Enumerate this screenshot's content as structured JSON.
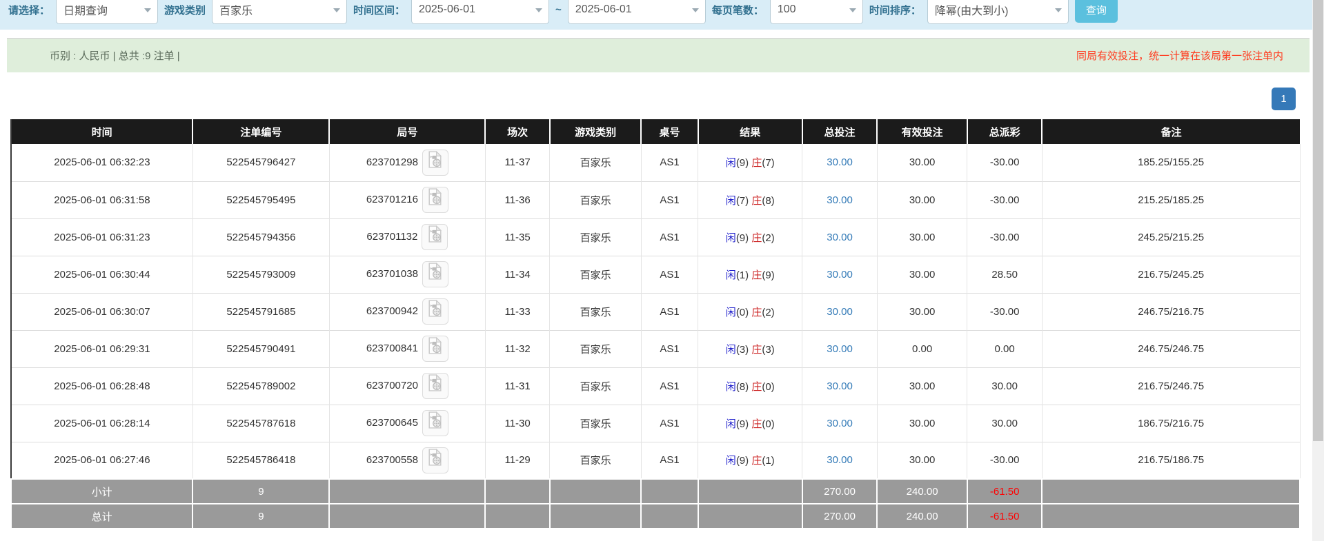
{
  "toolbar": {
    "select_label": "请选择：",
    "select_value": "日期查询",
    "game_label": "游戏类别",
    "game_value": "百家乐",
    "range_label": "时间区间：",
    "range_from": "2025-06-01",
    "range_tilde": "~",
    "range_to": "2025-06-01",
    "pagesize_label": "每页笔数：",
    "pagesize_value": "100",
    "sort_label": "时间排序：",
    "sort_value": "降幂(由大到小)",
    "search_label": "查询"
  },
  "summary_bar": {
    "left_text": "币别 : 人民币 | 总共 :9 注单 |",
    "right_text": "同局有效投注，统一计算在该局第一张注单内"
  },
  "pagination": {
    "page": "1"
  },
  "colors": {
    "accent_blue": "#337ab7",
    "player_blue": "#2222cc",
    "banker_red": "#cc2222",
    "negative_red": "#ff0000",
    "header_bg": "#1b1b1b",
    "footer_bg": "#9a9a9a",
    "toolbar_bg": "#d9edf7",
    "summary_bg": "#dfeedb"
  },
  "icons": {
    "chevron": "chevron-down-icon",
    "video": "video-record-icon"
  },
  "table": {
    "headers": [
      "时间",
      "注单编号",
      "局号",
      "场次",
      "游戏类别",
      "桌号",
      "结果",
      "总投注",
      "有效投注",
      "总派彩",
      "备注"
    ],
    "col_widths_pct": [
      14.1,
      10.6,
      12.1,
      5.0,
      7.1,
      4.4,
      8.1,
      5.8,
      7.0,
      5.8,
      20.0
    ],
    "rows": [
      {
        "time": "2025-06-01 06:32:23",
        "bet_id": "522545796427",
        "round": "623701298",
        "session": "11-37",
        "game": "百家乐",
        "table_no": "AS1",
        "result": {
          "player": "闲",
          "player_score": "(9)",
          "banker": "庄",
          "banker_score": "(7)"
        },
        "total_bet": "30.00",
        "valid_bet": "30.00",
        "payout": "-30.00",
        "remark": "185.25/155.25"
      },
      {
        "time": "2025-06-01 06:31:58",
        "bet_id": "522545795495",
        "round": "623701216",
        "session": "11-36",
        "game": "百家乐",
        "table_no": "AS1",
        "result": {
          "player": "闲",
          "player_score": "(7)",
          "banker": "庄",
          "banker_score": "(8)"
        },
        "total_bet": "30.00",
        "valid_bet": "30.00",
        "payout": "-30.00",
        "remark": "215.25/185.25"
      },
      {
        "time": "2025-06-01 06:31:23",
        "bet_id": "522545794356",
        "round": "623701132",
        "session": "11-35",
        "game": "百家乐",
        "table_no": "AS1",
        "result": {
          "player": "闲",
          "player_score": "(9)",
          "banker": "庄",
          "banker_score": "(2)"
        },
        "total_bet": "30.00",
        "valid_bet": "30.00",
        "payout": "-30.00",
        "remark": "245.25/215.25"
      },
      {
        "time": "2025-06-01 06:30:44",
        "bet_id": "522545793009",
        "round": "623701038",
        "session": "11-34",
        "game": "百家乐",
        "table_no": "AS1",
        "result": {
          "player": "闲",
          "player_score": "(1)",
          "banker": "庄",
          "banker_score": "(9)"
        },
        "total_bet": "30.00",
        "valid_bet": "30.00",
        "payout": "28.50",
        "remark": "216.75/245.25"
      },
      {
        "time": "2025-06-01 06:30:07",
        "bet_id": "522545791685",
        "round": "623700942",
        "session": "11-33",
        "game": "百家乐",
        "table_no": "AS1",
        "result": {
          "player": "闲",
          "player_score": "(0)",
          "banker": "庄",
          "banker_score": "(2)"
        },
        "total_bet": "30.00",
        "valid_bet": "30.00",
        "payout": "-30.00",
        "remark": "246.75/216.75"
      },
      {
        "time": "2025-06-01 06:29:31",
        "bet_id": "522545790491",
        "round": "623700841",
        "session": "11-32",
        "game": "百家乐",
        "table_no": "AS1",
        "result": {
          "player": "闲",
          "player_score": "(3)",
          "banker": "庄",
          "banker_score": "(3)"
        },
        "total_bet": "30.00",
        "valid_bet": "0.00",
        "payout": "0.00",
        "remark": "246.75/246.75"
      },
      {
        "time": "2025-06-01 06:28:48",
        "bet_id": "522545789002",
        "round": "623700720",
        "session": "11-31",
        "game": "百家乐",
        "table_no": "AS1",
        "result": {
          "player": "闲",
          "player_score": "(8)",
          "banker": "庄",
          "banker_score": "(0)"
        },
        "total_bet": "30.00",
        "valid_bet": "30.00",
        "payout": "30.00",
        "remark": "216.75/246.75"
      },
      {
        "time": "2025-06-01 06:28:14",
        "bet_id": "522545787618",
        "round": "623700645",
        "session": "11-30",
        "game": "百家乐",
        "table_no": "AS1",
        "result": {
          "player": "闲",
          "player_score": "(9)",
          "banker": "庄",
          "banker_score": "(0)"
        },
        "total_bet": "30.00",
        "valid_bet": "30.00",
        "payout": "30.00",
        "remark": "186.75/216.75"
      },
      {
        "time": "2025-06-01 06:27:46",
        "bet_id": "522545786418",
        "round": "623700558",
        "session": "11-29",
        "game": "百家乐",
        "table_no": "AS1",
        "result": {
          "player": "闲",
          "player_score": "(9)",
          "banker": "庄",
          "banker_score": "(1)"
        },
        "total_bet": "30.00",
        "valid_bet": "30.00",
        "payout": "-30.00",
        "remark": "216.75/186.75"
      }
    ],
    "footer": [
      {
        "label": "小计",
        "count": "9",
        "total_bet": "270.00",
        "valid_bet": "240.00",
        "payout": "-61.50"
      },
      {
        "label": "总计",
        "count": "9",
        "total_bet": "270.00",
        "valid_bet": "240.00",
        "payout": "-61.50"
      }
    ]
  }
}
